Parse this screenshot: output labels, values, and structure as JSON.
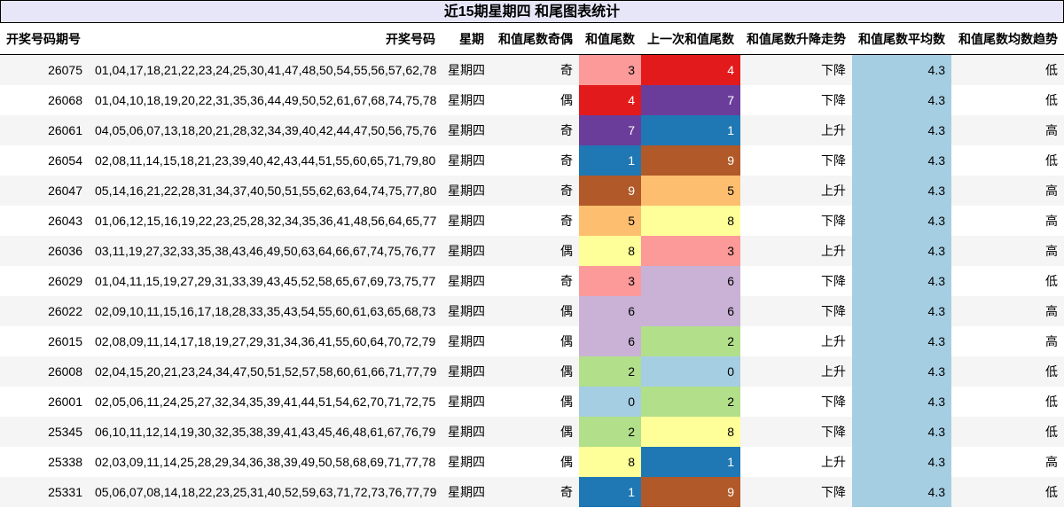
{
  "title": "近15期星期四 和尾图表统计",
  "headers": [
    "开奖号码期号",
    "开奖号码",
    "星期",
    "和值尾数奇偶",
    "和值尾数",
    "上一次和值尾数",
    "和值尾数升降走势",
    "和值尾数平均数",
    "和值尾数均数趋势"
  ],
  "digit_colors": [
    "#a6cee3",
    "#1f78b4",
    "#b2df8a",
    "#fb9a99",
    "#e31a1c",
    "#fdbf6f",
    "#cab2d6",
    "#6a3d9a",
    "#ffff99",
    "#b15928"
  ],
  "average_color": "#a6cee3",
  "rows": [
    {
      "issue": "26075",
      "numbers": "01,04,17,18,21,22,23,24,25,30,41,47,48,50,54,55,56,57,62,78",
      "weekday": "星期四",
      "parity": "奇",
      "tail": "3",
      "prev_tail": "4",
      "trend": "下降",
      "avg": "4.3",
      "avg_trend": "低"
    },
    {
      "issue": "26068",
      "numbers": "01,04,10,18,19,20,22,31,35,36,44,49,50,52,61,67,68,74,75,78",
      "weekday": "星期四",
      "parity": "偶",
      "tail": "4",
      "prev_tail": "7",
      "trend": "下降",
      "avg": "4.3",
      "avg_trend": "低"
    },
    {
      "issue": "26061",
      "numbers": "04,05,06,07,13,18,20,21,28,32,34,39,40,42,44,47,50,56,75,76",
      "weekday": "星期四",
      "parity": "奇",
      "tail": "7",
      "prev_tail": "1",
      "trend": "上升",
      "avg": "4.3",
      "avg_trend": "高"
    },
    {
      "issue": "26054",
      "numbers": "02,08,11,14,15,18,21,23,39,40,42,43,44,51,55,60,65,71,79,80",
      "weekday": "星期四",
      "parity": "奇",
      "tail": "1",
      "prev_tail": "9",
      "trend": "下降",
      "avg": "4.3",
      "avg_trend": "低"
    },
    {
      "issue": "26047",
      "numbers": "05,14,16,21,22,28,31,34,37,40,50,51,55,62,63,64,74,75,77,80",
      "weekday": "星期四",
      "parity": "奇",
      "tail": "9",
      "prev_tail": "5",
      "trend": "上升",
      "avg": "4.3",
      "avg_trend": "高"
    },
    {
      "issue": "26043",
      "numbers": "01,06,12,15,16,19,22,23,25,28,32,34,35,36,41,48,56,64,65,77",
      "weekday": "星期四",
      "parity": "奇",
      "tail": "5",
      "prev_tail": "8",
      "trend": "下降",
      "avg": "4.3",
      "avg_trend": "高"
    },
    {
      "issue": "26036",
      "numbers": "03,11,19,27,32,33,35,38,43,46,49,50,63,64,66,67,74,75,76,77",
      "weekday": "星期四",
      "parity": "偶",
      "tail": "8",
      "prev_tail": "3",
      "trend": "上升",
      "avg": "4.3",
      "avg_trend": "高"
    },
    {
      "issue": "26029",
      "numbers": "01,04,11,15,19,27,29,31,33,39,43,45,52,58,65,67,69,73,75,77",
      "weekday": "星期四",
      "parity": "奇",
      "tail": "3",
      "prev_tail": "6",
      "trend": "下降",
      "avg": "4.3",
      "avg_trend": "低"
    },
    {
      "issue": "26022",
      "numbers": "02,09,10,11,15,16,17,18,28,33,35,43,54,55,60,61,63,65,68,73",
      "weekday": "星期四",
      "parity": "偶",
      "tail": "6",
      "prev_tail": "6",
      "trend": "下降",
      "avg": "4.3",
      "avg_trend": "高"
    },
    {
      "issue": "26015",
      "numbers": "02,08,09,11,14,17,18,19,27,29,31,34,36,41,55,60,64,70,72,79",
      "weekday": "星期四",
      "parity": "偶",
      "tail": "6",
      "prev_tail": "2",
      "trend": "上升",
      "avg": "4.3",
      "avg_trend": "高"
    },
    {
      "issue": "26008",
      "numbers": "02,04,15,20,21,23,24,34,47,50,51,52,57,58,60,61,66,71,77,79",
      "weekday": "星期四",
      "parity": "偶",
      "tail": "2",
      "prev_tail": "0",
      "trend": "上升",
      "avg": "4.3",
      "avg_trend": "低"
    },
    {
      "issue": "26001",
      "numbers": "02,05,06,11,24,25,27,32,34,35,39,41,44,51,54,62,70,71,72,75",
      "weekday": "星期四",
      "parity": "偶",
      "tail": "0",
      "prev_tail": "2",
      "trend": "下降",
      "avg": "4.3",
      "avg_trend": "低"
    },
    {
      "issue": "25345",
      "numbers": "06,10,11,12,14,19,30,32,35,38,39,41,43,45,46,48,61,67,76,79",
      "weekday": "星期四",
      "parity": "偶",
      "tail": "2",
      "prev_tail": "8",
      "trend": "下降",
      "avg": "4.3",
      "avg_trend": "低"
    },
    {
      "issue": "25338",
      "numbers": "02,03,09,11,14,25,28,29,34,36,38,39,49,50,58,68,69,71,77,78",
      "weekday": "星期四",
      "parity": "偶",
      "tail": "8",
      "prev_tail": "1",
      "trend": "上升",
      "avg": "4.3",
      "avg_trend": "高"
    },
    {
      "issue": "25331",
      "numbers": "05,06,07,08,14,18,22,23,25,31,40,52,59,63,71,72,73,76,77,79",
      "weekday": "星期四",
      "parity": "奇",
      "tail": "1",
      "prev_tail": "9",
      "trend": "下降",
      "avg": "4.3",
      "avg_trend": "低"
    }
  ]
}
